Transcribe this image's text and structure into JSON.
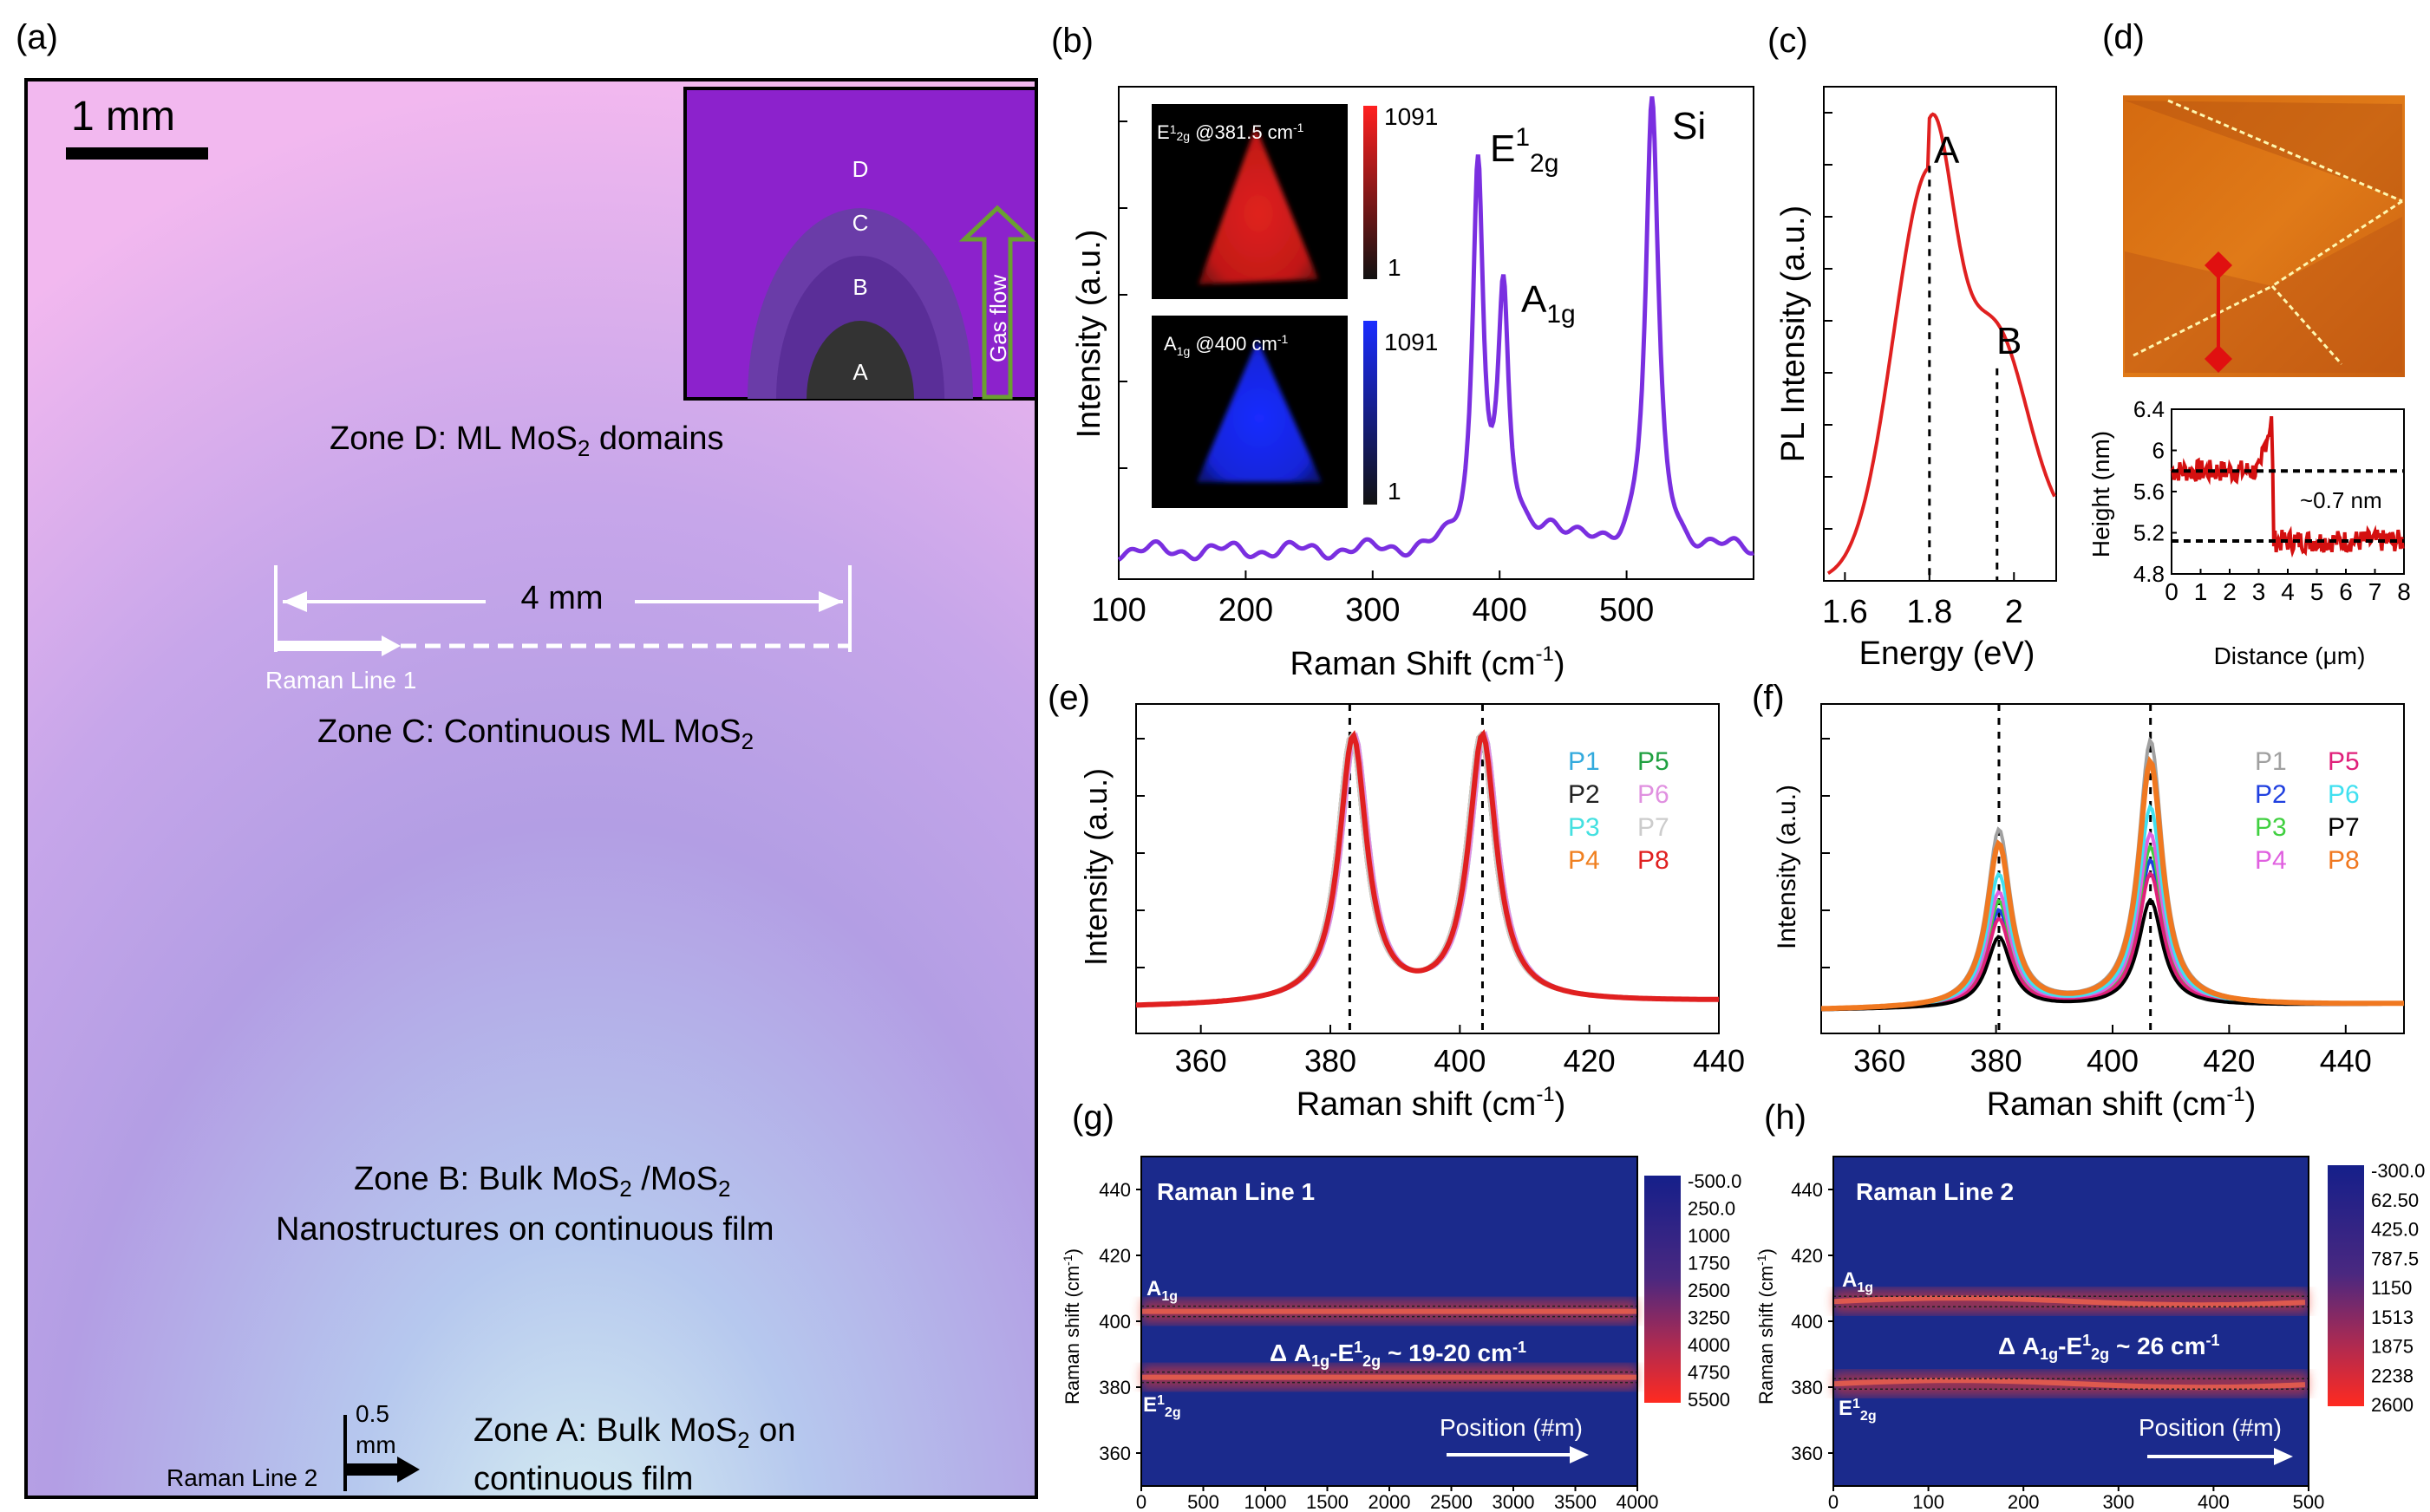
{
  "panel_labels": {
    "a": "(a)",
    "b": "(b)",
    "c": "(c)",
    "d": "(d)",
    "e": "(e)",
    "f": "(f)",
    "g": "(g)",
    "h": "(h)"
  },
  "colors": {
    "wafer_pink": "#f0b8f0",
    "wafer_purple": "#b99ae6",
    "zone_mid": "#a898dc",
    "zone_ice": "#cfe8f0",
    "raman_purple": "#7a2fe0",
    "pl_red": "#e02020",
    "afm_red": "#d41010",
    "map_bg": "#1b2a8c",
    "map_band": "#f23a2a",
    "f_gray": "#a0a0a0",
    "f_blue": "#2040e0",
    "f_green": "#40d040",
    "f_violet": "#e060e0",
    "f_magenta": "#e0207a",
    "f_cyan": "#40e0f0",
    "f_black": "#000000",
    "f_orange": "#f07820"
  },
  "panel_a": {
    "scale_bar": "1 mm",
    "inset": {
      "zones": [
        "D",
        "C",
        "B",
        "A"
      ],
      "arrow_label": "Gas flow"
    },
    "zone_d": {
      "line1_pre": "Zone D: ML MoS",
      "sub": "2",
      "line1_post": " domains"
    },
    "distance": "4 mm",
    "raman_line1": "Raman Line  1",
    "zone_c": {
      "pre": "Zone C: Continuous ML MoS",
      "sub": "2"
    },
    "zone_b": {
      "pre": "Zone B: Bulk MoS",
      "sub1": "2",
      "mid": " /MoS",
      "sub2": "2",
      "line2": "Nanostructures on continuous film"
    },
    "small_scale_1": "0.5",
    "small_scale_2": "mm",
    "raman_line2": "Raman Line 2",
    "zone_a": {
      "pre": "Zone A: Bulk MoS",
      "sub": "2",
      "post": " on",
      "line2": "continuous film"
    }
  },
  "chart_data": [
    {
      "id": "b",
      "type": "line",
      "xlabel": "Raman Shift (cm",
      "xlabel_sup": "-1",
      "xlabel_end": ")",
      "ylabel": "Intensity (a.u.)",
      "xlim": [
        100,
        600
      ],
      "ylim": [
        0,
        1.05
      ],
      "xticks": [
        100,
        200,
        300,
        400,
        500
      ],
      "peaks": [
        {
          "x": 383,
          "h": 0.82,
          "w": 5
        },
        {
          "x": 403,
          "h": 0.52,
          "w": 5
        },
        {
          "x": 440,
          "h": 0.05,
          "w": 15
        },
        {
          "x": 520,
          "h": 0.95,
          "w": 6
        }
      ],
      "baseline": 0.06,
      "annotations": {
        "e": "E",
        "e_sup": "1",
        "e_sub": "2g",
        "a": "A",
        "a_sub": "1g",
        "si": "Si"
      },
      "maps": [
        {
          "label": "E",
          "label_sup": "1",
          "label_sub": "2g",
          "label_tail": " @381.5 cm",
          "label_tail_sup": "-1",
          "max": "1091",
          "min": "1",
          "color": "red"
        },
        {
          "label": "A",
          "label_sub": "1g",
          "label_tail": " @400 cm",
          "label_tail_sup": "-1",
          "max": "1091",
          "min": "1",
          "color": "blue"
        }
      ]
    },
    {
      "id": "c",
      "type": "line",
      "xlabel": "Energy (eV)",
      "ylabel": "PL Intensity (a.u.)",
      "xlim": [
        1.55,
        2.1
      ],
      "ylim": [
        0,
        1
      ],
      "xticks": [
        1.6,
        1.8,
        2.0
      ],
      "xtick_labels": [
        "1.6",
        "1.8",
        "2"
      ],
      "peaks": [
        {
          "x": 1.8,
          "label": "A"
        },
        {
          "x": 1.96,
          "label": "B"
        }
      ]
    },
    {
      "id": "d_profile",
      "type": "line",
      "xlabel": "Distance (",
      "xlabel_mu": "μ",
      "xlabel_end": "m)",
      "ylabel": "Height (nm)",
      "xlim": [
        0,
        8
      ],
      "ylim": [
        4.8,
        6.4
      ],
      "xticks": [
        0,
        1,
        2,
        3,
        4,
        5,
        6,
        7,
        8
      ],
      "yticks": [
        4.8,
        5.2,
        5.6,
        6.0,
        6.4
      ],
      "ytick_labels": [
        "4.8",
        "5.2",
        "5.6",
        "6",
        "6.4"
      ],
      "levels": [
        5.8,
        5.12
      ],
      "step_at": 3.5,
      "annotation": "~0.7 nm"
    },
    {
      "id": "e",
      "type": "line",
      "xlabel": "Raman shift (cm",
      "xlabel_sup": "-1",
      "xlabel_end": ")",
      "ylabel": "Intensity (a.u.)",
      "xlim": [
        350,
        440
      ],
      "xticks": [
        360,
        380,
        400,
        420,
        440
      ],
      "dashed": [
        383,
        403.5
      ],
      "series": [
        {
          "name": "P1",
          "color": "#33aadd"
        },
        {
          "name": "P2",
          "color": "#222222"
        },
        {
          "name": "P3",
          "color": "#44e0e0"
        },
        {
          "name": "P4",
          "color": "#f08020"
        },
        {
          "name": "P5",
          "color": "#20a040"
        },
        {
          "name": "P6",
          "color": "#e090e0"
        },
        {
          "name": "P7",
          "color": "#cccccc"
        },
        {
          "name": "P8",
          "color": "#e02020"
        }
      ]
    },
    {
      "id": "f",
      "type": "line",
      "xlabel": "Raman shift (cm",
      "xlabel_sup": "-1",
      "xlabel_end": ")",
      "ylabel": "Intensity (a.u.)",
      "xlim": [
        350,
        450
      ],
      "xticks": [
        360,
        380,
        400,
        420,
        440
      ],
      "dashed": [
        380.5,
        406.5
      ],
      "series": [
        {
          "name": "P1",
          "color": "#a0a0a0",
          "scale": 1.0
        },
        {
          "name": "P2",
          "color": "#2040e0",
          "scale": 0.55
        },
        {
          "name": "P3",
          "color": "#40d040",
          "scale": 0.6
        },
        {
          "name": "P4",
          "color": "#e060e0",
          "scale": 0.65
        },
        {
          "name": "P5",
          "color": "#e0207a",
          "scale": 0.5
        },
        {
          "name": "P6",
          "color": "#40e0f0",
          "scale": 0.75
        },
        {
          "name": "P7",
          "color": "#000000",
          "scale": 0.4
        },
        {
          "name": "P8",
          "color": "#f07820",
          "scale": 0.92
        }
      ]
    },
    {
      "id": "g",
      "type": "heatmap",
      "title": "Raman Line 1",
      "xlabel": "Position (#m)",
      "ylabel": "Raman shift (cm",
      "ylabel_sup": "-1",
      "ylabel_end": ")",
      "xlim": [
        0,
        4000
      ],
      "xticks": [
        0,
        500,
        1000,
        1500,
        2000,
        2500,
        3000,
        3500,
        4000
      ],
      "ylim": [
        350,
        450
      ],
      "yticks": [
        360,
        380,
        400,
        420,
        440
      ],
      "bands": [
        383,
        403
      ],
      "band_labels": {
        "a": "A",
        "a_sub": "1g",
        "e": "E",
        "e_sup": "1",
        "e_sub": "2g"
      },
      "delta": {
        "pre": "Δ A",
        "s1": "1g",
        "mid": "-E",
        "sup": "1",
        "s2": "2g",
        "post": " ~ 19-20 cm",
        "tail_sup": "-1"
      },
      "colorbar": [
        "-500.0",
        "250.0",
        "1000",
        "1750",
        "2500",
        "3250",
        "4000",
        "4750",
        "5500"
      ]
    },
    {
      "id": "h",
      "type": "heatmap",
      "title": "Raman Line 2",
      "xlabel": "Position (#m)",
      "ylabel": "Raman shift (cm",
      "ylabel_sup": "-1",
      "ylabel_end": ")",
      "xlim": [
        0,
        500
      ],
      "xticks": [
        0,
        100,
        200,
        300,
        400,
        500
      ],
      "ylim": [
        350,
        450
      ],
      "yticks": [
        360,
        380,
        400,
        420,
        440
      ],
      "bands": [
        381,
        406
      ],
      "band_labels": {
        "a": "A",
        "a_sub": "1g",
        "e": "E",
        "e_sup": "1",
        "e_sub": "2g"
      },
      "delta": {
        "pre": "Δ A",
        "s1": "1g",
        "mid": "-E",
        "sup": "1",
        "s2": "2g",
        "post": " ~ 26 cm",
        "tail_sup": "-1"
      },
      "colorbar": [
        "-300.0",
        "62.50",
        "425.0",
        "787.5",
        "1150",
        "1513",
        "1875",
        "2238",
        "2600"
      ]
    }
  ]
}
